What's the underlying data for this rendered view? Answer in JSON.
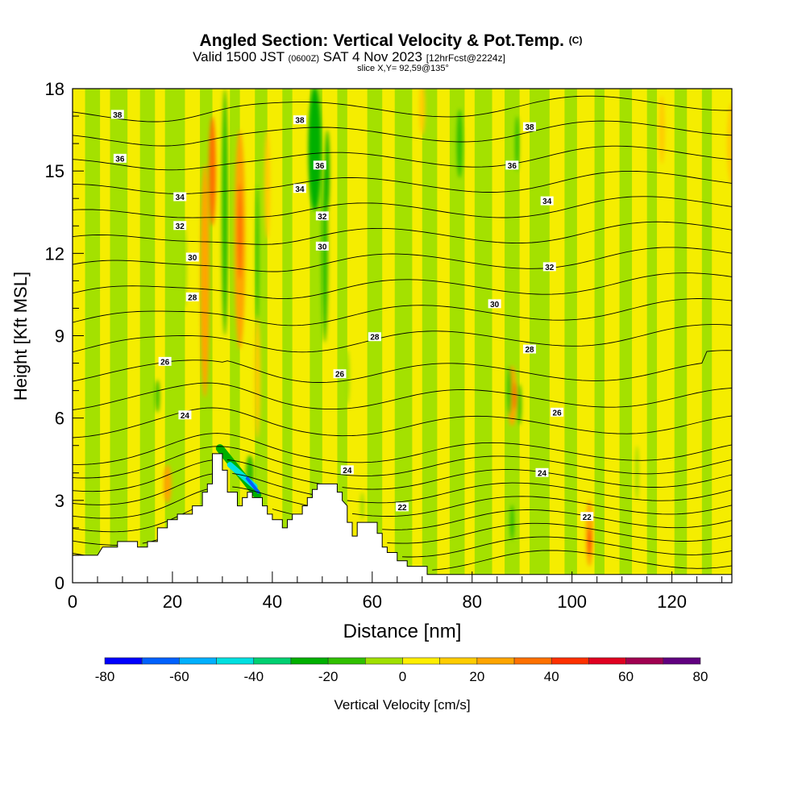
{
  "header": {
    "title": "Angled Section: Vertical Velocity & Pot.Temp.",
    "title_mark": "(C)",
    "valid_prefix": "Valid 1500 JST",
    "valid_zulu": "(0600Z)",
    "valid_date": "SAT 4 Nov 2023",
    "forecast": "[12hrFcst@2224z]",
    "slice": "slice X,Y= 92,59@135°"
  },
  "chart_data": {
    "type": "heatmap",
    "xlabel": "Distance [nm]",
    "ylabel": "Height [Kft MSL]",
    "xlim": [
      0,
      132
    ],
    "ylim": [
      0,
      18
    ],
    "x_ticks": [
      0,
      20,
      40,
      60,
      80,
      100,
      120
    ],
    "y_ticks": [
      0,
      3,
      6,
      9,
      12,
      15,
      18
    ],
    "terrain_kft": [
      [
        0,
        1.0
      ],
      [
        5,
        1.0
      ],
      [
        6,
        1.3
      ],
      [
        9,
        1.3
      ],
      [
        9,
        1.5
      ],
      [
        13,
        1.5
      ],
      [
        13,
        1.3
      ],
      [
        15,
        1.3
      ],
      [
        15,
        1.5
      ],
      [
        17,
        1.5
      ],
      [
        17,
        2.0
      ],
      [
        19,
        2.0
      ],
      [
        19,
        2.3
      ],
      [
        21,
        2.3
      ],
      [
        21,
        2.5
      ],
      [
        24,
        2.5
      ],
      [
        24,
        2.8
      ],
      [
        26,
        2.8
      ],
      [
        26,
        3.3
      ],
      [
        27,
        3.3
      ],
      [
        27,
        3.6
      ],
      [
        28,
        3.6
      ],
      [
        28,
        4.7
      ],
      [
        30,
        4.7
      ],
      [
        30,
        4.1
      ],
      [
        31,
        4.1
      ],
      [
        31,
        3.3
      ],
      [
        33,
        3.3
      ],
      [
        33,
        2.8
      ],
      [
        34,
        2.8
      ],
      [
        34,
        3.1
      ],
      [
        35,
        3.1
      ],
      [
        35,
        3.3
      ],
      [
        36,
        3.3
      ],
      [
        36,
        3.1
      ],
      [
        38,
        3.1
      ],
      [
        38,
        2.8
      ],
      [
        39,
        2.8
      ],
      [
        39,
        2.5
      ],
      [
        40,
        2.5
      ],
      [
        40,
        2.3
      ],
      [
        42,
        2.3
      ],
      [
        42,
        2.0
      ],
      [
        43,
        2.0
      ],
      [
        43,
        2.3
      ],
      [
        44,
        2.3
      ],
      [
        44,
        2.5
      ],
      [
        46,
        2.5
      ],
      [
        46,
        2.8
      ],
      [
        47,
        2.8
      ],
      [
        47,
        3.1
      ],
      [
        48,
        3.1
      ],
      [
        48,
        3.4
      ],
      [
        49,
        3.4
      ],
      [
        49,
        3.6
      ],
      [
        53,
        3.6
      ],
      [
        53,
        3.3
      ],
      [
        54,
        3.3
      ],
      [
        54,
        3.0
      ],
      [
        55,
        2.8
      ],
      [
        55,
        2.2
      ],
      [
        56,
        2.2
      ],
      [
        56,
        1.7
      ],
      [
        57,
        1.7
      ],
      [
        57,
        2.2
      ],
      [
        61,
        2.2
      ],
      [
        61,
        1.8
      ],
      [
        62,
        1.8
      ],
      [
        62,
        1.3
      ],
      [
        63,
        1.3
      ],
      [
        63,
        1.1
      ],
      [
        65,
        1.1
      ],
      [
        65,
        0.8
      ],
      [
        67,
        0.8
      ],
      [
        67,
        0.6
      ],
      [
        71,
        0.6
      ],
      [
        71,
        0.3
      ],
      [
        132,
        0.3
      ]
    ],
    "velocity_features": [
      {
        "x": 19,
        "y": 3.6,
        "w": 1.6,
        "h": 1.4,
        "v": 20
      },
      {
        "x": 26.5,
        "y": 11.0,
        "w": 1.8,
        "h": 8.5,
        "v": 20
      },
      {
        "x": 28,
        "y": 15.0,
        "w": 1.4,
        "h": 4.0,
        "v": 30
      },
      {
        "x": 33.5,
        "y": 12.5,
        "w": 2.2,
        "h": 8.0,
        "v": 20
      },
      {
        "x": 33.5,
        "y": 12.8,
        "w": 1.0,
        "h": 3.5,
        "v": 30
      },
      {
        "x": 37,
        "y": 7.5,
        "w": 1.2,
        "h": 4.5,
        "v": 15
      },
      {
        "x": 39,
        "y": 14.5,
        "w": 1.2,
        "h": 4.0,
        "v": 15
      },
      {
        "x": 70,
        "y": 17.3,
        "w": 1.2,
        "h": 2.0,
        "v": 15
      },
      {
        "x": 88,
        "y": 6.8,
        "w": 1.8,
        "h": 2.2,
        "v": 25
      },
      {
        "x": 88.5,
        "y": 6.8,
        "w": 0.8,
        "h": 1.0,
        "v": 35
      },
      {
        "x": 103.5,
        "y": 1.8,
        "w": 1.5,
        "h": 2.4,
        "v": 25
      },
      {
        "x": 103.5,
        "y": 1.5,
        "w": 0.6,
        "h": 1.0,
        "v": 40
      },
      {
        "x": 118,
        "y": 16.5,
        "w": 1.2,
        "h": 2.5,
        "v": 15
      },
      {
        "x": 132,
        "y": 16.0,
        "w": 2.0,
        "h": 3.0,
        "v": 15
      },
      {
        "x": 30.5,
        "y": 13.5,
        "w": 1.3,
        "h": 9.0,
        "v": -12
      },
      {
        "x": 37,
        "y": 12.0,
        "w": 0.6,
        "h": 5.0,
        "v": -12
      },
      {
        "x": 48.5,
        "y": 15.8,
        "w": 2.6,
        "h": 4.5,
        "v": -22
      },
      {
        "x": 50.5,
        "y": 12.0,
        "w": 1.3,
        "h": 6.5,
        "v": -15
      },
      {
        "x": 51,
        "y": 15.0,
        "w": 0.9,
        "h": 3.0,
        "v": -30
      },
      {
        "x": 55,
        "y": 7.5,
        "w": 1.0,
        "h": 2.0,
        "v": -10
      },
      {
        "x": 77.5,
        "y": 16.0,
        "w": 1.2,
        "h": 2.5,
        "v": -15
      },
      {
        "x": 22.5,
        "y": 11.5,
        "w": 0.8,
        "h": 3.0,
        "v": -8
      },
      {
        "x": 87.5,
        "y": 7.0,
        "w": 0.9,
        "h": 1.8,
        "v": -15
      },
      {
        "x": 89.5,
        "y": 6.5,
        "w": 0.8,
        "h": 1.5,
        "v": -15
      },
      {
        "x": 89,
        "y": 16.0,
        "w": 0.8,
        "h": 2.0,
        "v": -12
      },
      {
        "x": 88,
        "y": 2.2,
        "w": 0.8,
        "h": 1.3,
        "v": -20
      },
      {
        "x": 113,
        "y": 4.0,
        "w": 0.8,
        "h": 2.0,
        "v": -10
      },
      {
        "x": 17,
        "y": 6.8,
        "w": 0.9,
        "h": 1.2,
        "v": -12
      },
      {
        "x": 58,
        "y": 2.8,
        "w": 0.8,
        "h": 1.0,
        "v": -10
      },
      {
        "x": 35.5,
        "y": 4.0,
        "w": 1.6,
        "h": 1.3,
        "v": -18
      }
    ],
    "downslope_jet": [
      {
        "x1": 29.5,
        "y1": 4.9,
        "x2": 37.0,
        "y2": 3.2,
        "v": -22
      },
      {
        "x1": 31.5,
        "y1": 4.3,
        "x2": 36.5,
        "y2": 3.5,
        "v": -45
      },
      {
        "x1": 35.0,
        "y1": 3.8,
        "x2": 37.2,
        "y2": 3.3,
        "v": -65
      }
    ],
    "theta_contours_K": [
      20,
      21,
      21.5,
      22,
      22.5,
      23,
      23.5,
      24,
      24.5,
      25,
      26,
      27,
      28,
      29,
      30,
      31,
      32,
      33,
      34,
      35,
      36,
      37,
      38
    ],
    "contour_labels": [
      {
        "x": 9,
        "y": 17.05,
        "text": "38"
      },
      {
        "x": 9.5,
        "y": 15.45,
        "text": "36"
      },
      {
        "x": 21.5,
        "y": 14.05,
        "text": "34"
      },
      {
        "x": 21.5,
        "y": 13.0,
        "text": "32"
      },
      {
        "x": 24,
        "y": 11.85,
        "text": "30"
      },
      {
        "x": 24,
        "y": 10.4,
        "text": "28"
      },
      {
        "x": 18.5,
        "y": 8.05,
        "text": "26"
      },
      {
        "x": 22.5,
        "y": 6.1,
        "text": "24"
      },
      {
        "x": 45.5,
        "y": 16.85,
        "text": "38"
      },
      {
        "x": 49.5,
        "y": 15.2,
        "text": "36"
      },
      {
        "x": 45.5,
        "y": 14.35,
        "text": "34"
      },
      {
        "x": 50,
        "y": 13.35,
        "text": "32"
      },
      {
        "x": 50,
        "y": 12.25,
        "text": "30"
      },
      {
        "x": 60.5,
        "y": 8.95,
        "text": "28"
      },
      {
        "x": 53.5,
        "y": 7.6,
        "text": "26"
      },
      {
        "x": 55,
        "y": 4.1,
        "text": "24"
      },
      {
        "x": 66,
        "y": 2.75,
        "text": "22"
      },
      {
        "x": 91.5,
        "y": 16.6,
        "text": "38"
      },
      {
        "x": 88,
        "y": 15.2,
        "text": "36"
      },
      {
        "x": 95,
        "y": 13.9,
        "text": "34"
      },
      {
        "x": 95.5,
        "y": 11.5,
        "text": "32"
      },
      {
        "x": 84.5,
        "y": 10.15,
        "text": "30"
      },
      {
        "x": 91.5,
        "y": 8.5,
        "text": "28"
      },
      {
        "x": 97,
        "y": 6.2,
        "text": "26"
      },
      {
        "x": 94,
        "y": 4.0,
        "text": "24"
      },
      {
        "x": 103,
        "y": 2.4,
        "text": "22"
      }
    ],
    "colorbar": {
      "label": "Vertical Velocity [cm/s]",
      "min": -80,
      "max": 80,
      "ticks": [
        -80,
        -60,
        -40,
        -20,
        0,
        20,
        40,
        60,
        80
      ],
      "bins": [
        {
          "from": -80,
          "to": -70,
          "color": "#0000ff"
        },
        {
          "from": -70,
          "to": -60,
          "color": "#0060ff"
        },
        {
          "from": -60,
          "to": -50,
          "color": "#00b0ff"
        },
        {
          "from": -50,
          "to": -40,
          "color": "#00e0e0"
        },
        {
          "from": -40,
          "to": -30,
          "color": "#00d070"
        },
        {
          "from": -30,
          "to": -20,
          "color": "#00b000"
        },
        {
          "from": -20,
          "to": -10,
          "color": "#30c000"
        },
        {
          "from": -10,
          "to": 0,
          "color": "#a0e000"
        },
        {
          "from": 0,
          "to": 10,
          "color": "#ffee00"
        },
        {
          "from": 10,
          "to": 20,
          "color": "#ffcc00"
        },
        {
          "from": 20,
          "to": 30,
          "color": "#ffa500"
        },
        {
          "from": 30,
          "to": 40,
          "color": "#ff7000"
        },
        {
          "from": 40,
          "to": 50,
          "color": "#ff3000"
        },
        {
          "from": 50,
          "to": 60,
          "color": "#e00020"
        },
        {
          "from": 60,
          "to": 70,
          "color": "#a00050"
        },
        {
          "from": 70,
          "to": 80,
          "color": "#600080"
        }
      ]
    }
  }
}
